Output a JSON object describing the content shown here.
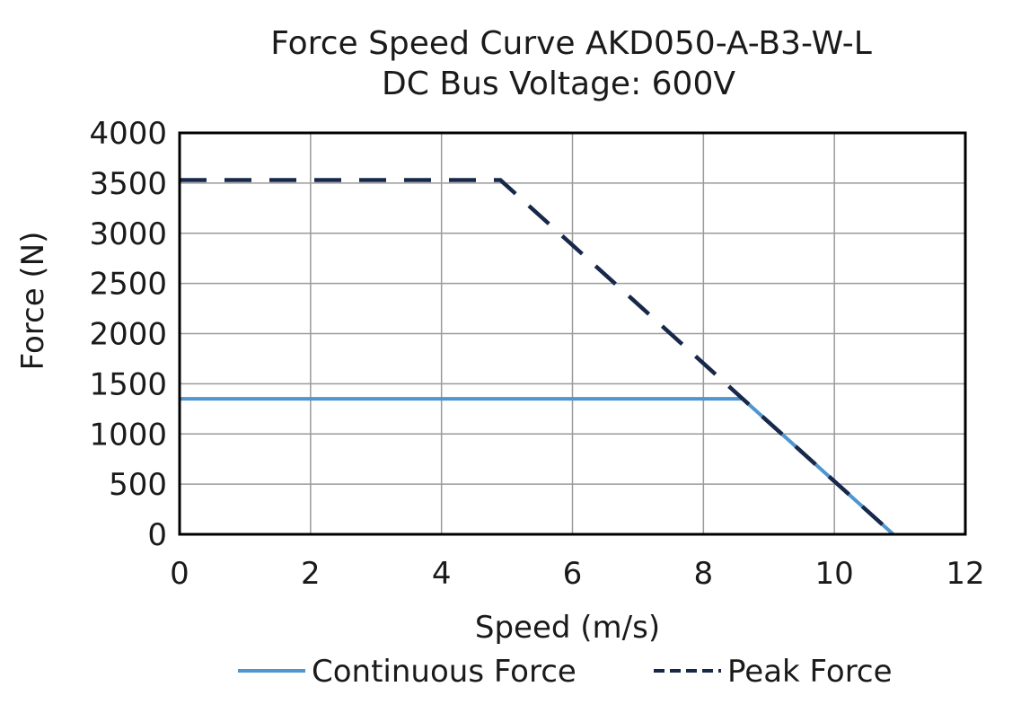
{
  "chart_data": {
    "type": "line",
    "title": "Force Speed Curve AKD050-A-B3-W-L",
    "subtitle": "DC Bus Voltage: 600V",
    "xlabel": "Speed (m/s)",
    "ylabel": "Force (N)",
    "xlim": [
      0,
      12
    ],
    "ylim": [
      0,
      4000
    ],
    "xticks": [
      0,
      2,
      4,
      6,
      8,
      10,
      12
    ],
    "yticks": [
      0,
      500,
      1000,
      1500,
      2000,
      2500,
      3000,
      3500,
      4000
    ],
    "grid": true,
    "legend_position": "bottom",
    "series": [
      {
        "name": "Continuous Force",
        "color": "#4f95cf",
        "dash": "solid",
        "points": [
          [
            0,
            1350
          ],
          [
            8.6,
            1350
          ],
          [
            10.9,
            0
          ]
        ]
      },
      {
        "name": "Peak Force",
        "color": "#17284a",
        "dash": "dashed",
        "points": [
          [
            0,
            3530
          ],
          [
            4.9,
            3530
          ],
          [
            8.6,
            1350
          ],
          [
            10.9,
            0
          ]
        ]
      }
    ]
  }
}
